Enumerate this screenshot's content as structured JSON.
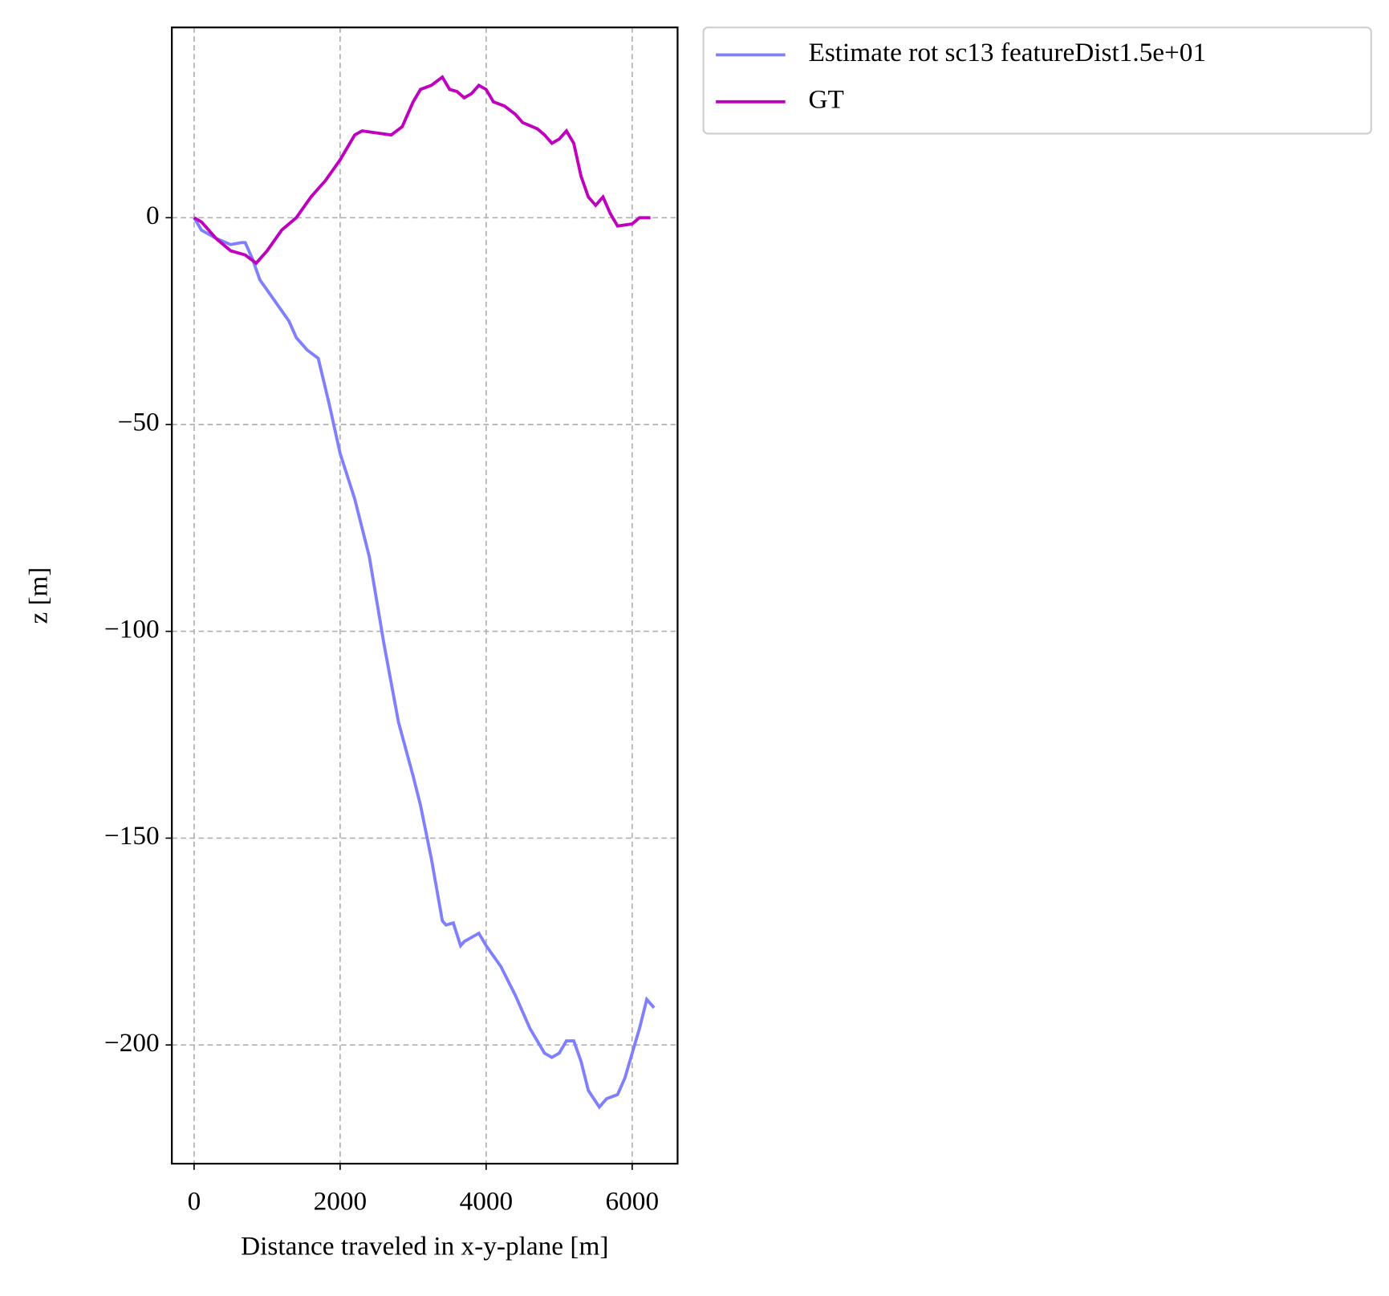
{
  "chart_data": {
    "type": "line",
    "xlabel": "Distance traveled in x-y-plane [m]",
    "ylabel": "z [m]",
    "xlim": [
      -305,
      6622
    ],
    "ylim": [
      -228.7,
      46
    ],
    "xticks": [
      0,
      2000,
      4000,
      6000
    ],
    "yticks": [
      {
        "value": -200,
        "label": "−200"
      },
      {
        "value": -150,
        "label": "−150"
      },
      {
        "value": -100,
        "label": "−100"
      },
      {
        "value": -50,
        "label": "−50"
      },
      0
    ],
    "grid": true,
    "legend": "outside upper right",
    "series": [
      {
        "name": "Estimate rot sc13 featureDist1.5e+01",
        "color": "#8080ff",
        "x": [
          0,
          100,
          300,
          500,
          650,
          700,
          800,
          900,
          1100,
          1300,
          1400,
          1550,
          1700,
          1850,
          2000,
          2200,
          2400,
          2600,
          2800,
          3000,
          3100,
          3250,
          3400,
          3450,
          3550,
          3650,
          3700,
          3800,
          3900,
          4000,
          4200,
          4400,
          4600,
          4700,
          4800,
          4900,
          5000,
          5100,
          5200,
          5300,
          5400,
          5550,
          5650,
          5800,
          5900,
          6000,
          6100,
          6200,
          6300
        ],
        "values": [
          0,
          -3,
          -5,
          -6.5,
          -6,
          -6,
          -10,
          -15,
          -20,
          -25,
          -29,
          -32,
          -34,
          -45,
          -57,
          -68,
          -82,
          -103,
          -122,
          -135,
          -142,
          -155,
          -170,
          -171,
          -170.5,
          -176,
          -175,
          -174,
          -173,
          -176,
          -181,
          -188,
          -196,
          -199,
          -202,
          -203,
          -202,
          -199,
          -199,
          -204,
          -211,
          -215,
          -213,
          -212,
          -208,
          -202,
          -196,
          -189,
          -191
        ]
      },
      {
        "name": "GT",
        "color": "#bf00bf",
        "x": [
          0,
          100,
          300,
          500,
          700,
          850,
          1000,
          1200,
          1400,
          1600,
          1800,
          2000,
          2200,
          2300,
          2500,
          2700,
          2850,
          3000,
          3100,
          3250,
          3400,
          3500,
          3600,
          3700,
          3800,
          3900,
          4000,
          4100,
          4250,
          4400,
          4500,
          4700,
          4800,
          4900,
          5000,
          5100,
          5200,
          5300,
          5400,
          5500,
          5600,
          5700,
          5800,
          6000,
          6100,
          6200,
          6250
        ],
        "values": [
          0,
          -1,
          -5,
          -8,
          -9,
          -11,
          -8,
          -3,
          0,
          5,
          9,
          14,
          20,
          21,
          20.5,
          20,
          22,
          28,
          31,
          32,
          34,
          31,
          30.5,
          29,
          30,
          32,
          31,
          28,
          27,
          25,
          23,
          21.5,
          20,
          18,
          19,
          21,
          18,
          10,
          5,
          3,
          5,
          1,
          -2,
          -1.5,
          0,
          0,
          0
        ]
      }
    ]
  }
}
